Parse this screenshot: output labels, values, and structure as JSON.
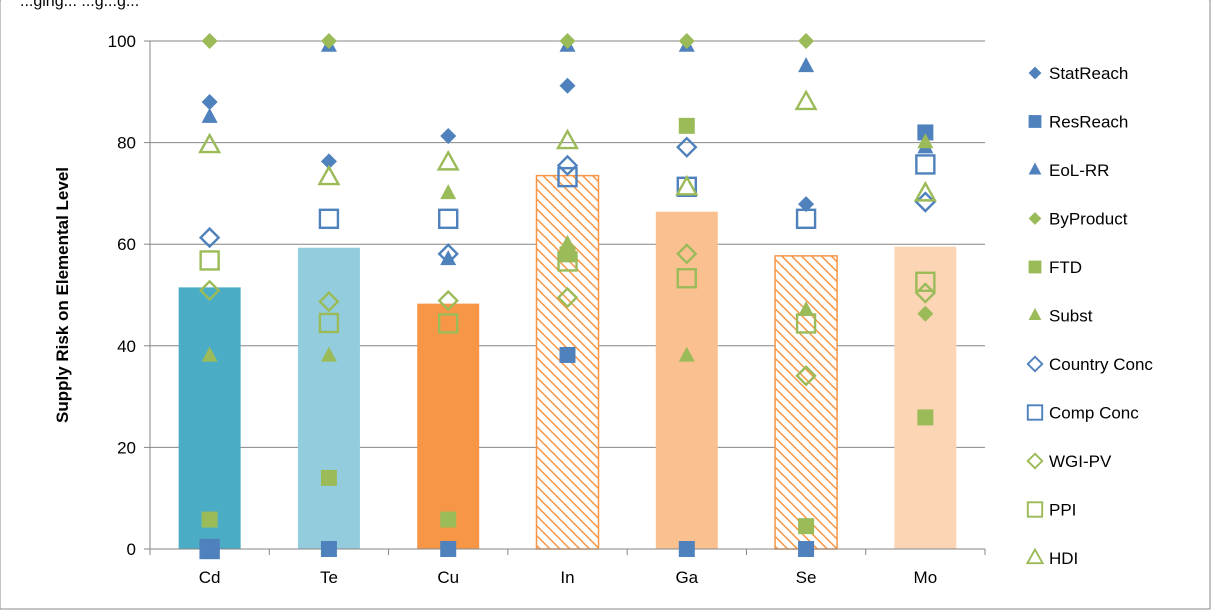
{
  "caption": "...ging... ...g...g...",
  "chart_data": {
    "type": "bar",
    "ylabel": "Supply Risk on Elemental Level",
    "xlabel": "",
    "ylim": [
      0,
      100
    ],
    "yticks": [
      0,
      20,
      40,
      60,
      80,
      100
    ],
    "grid": true,
    "legend_position": "right",
    "categories": [
      "Cd",
      "Te",
      "Cu",
      "In",
      "Ga",
      "Se",
      "Mo"
    ],
    "bars": {
      "values": [
        51.5,
        59.3,
        48.3,
        73.5,
        66.4,
        57.7,
        59.5
      ],
      "fills": [
        "#4bacc6",
        "#93cddd",
        "#f79646",
        "hatch",
        "#fac090",
        "hatch",
        "#fcd5b5"
      ]
    },
    "series": [
      {
        "name": "StatReach",
        "marker": "diamond",
        "filled": true,
        "color": "#4f81bd",
        "values": [
          88,
          76.3,
          81.3,
          91.2,
          null,
          67.9,
          null
        ]
      },
      {
        "name": "ResReach",
        "marker": "square",
        "filled": true,
        "color": "#4f81bd",
        "values": [
          0,
          0,
          0,
          38.2,
          0,
          0,
          82
        ]
      },
      {
        "name": "EoL-RR",
        "marker": "triangle",
        "filled": true,
        "color": "#4f81bd",
        "values": [
          85,
          99,
          57,
          99,
          99,
          95,
          79
        ]
      },
      {
        "name": "ByProduct",
        "marker": "diamond",
        "filled": true,
        "color": "#9bbb59",
        "values": [
          100,
          100,
          null,
          100,
          100,
          100,
          46.3
        ]
      },
      {
        "name": "FTD",
        "marker": "square",
        "filled": true,
        "color": "#9bbb59",
        "values": [
          5.8,
          14,
          5.8,
          58,
          83.3,
          4.5,
          25.9
        ]
      },
      {
        "name": "Subst",
        "marker": "triangle",
        "filled": true,
        "color": "#9bbb59",
        "values": [
          38,
          38,
          70,
          60,
          38,
          47,
          80
        ]
      },
      {
        "name": "Country Conc",
        "marker": "diamond",
        "filled": false,
        "color": "#4f81bd",
        "values": [
          61.3,
          null,
          58.1,
          75.5,
          79.1,
          null,
          68.3
        ]
      },
      {
        "name": "Comp Conc",
        "marker": "square",
        "filled": false,
        "color": "#4f81bd",
        "values": [
          0,
          65,
          65,
          73.2,
          71.3,
          65,
          75.7
        ]
      },
      {
        "name": "WGI-PV",
        "marker": "diamond",
        "filled": false,
        "color": "#9bbb59",
        "values": [
          50.9,
          48.7,
          48.9,
          49.5,
          58.1,
          34.1,
          50.4
        ]
      },
      {
        "name": "PPI",
        "marker": "square",
        "filled": false,
        "color": "#9bbb59",
        "values": [
          56.8,
          44.5,
          44.4,
          56.6,
          53.3,
          44.4,
          52.6
        ]
      },
      {
        "name": "HDI",
        "marker": "triangle",
        "filled": false,
        "color": "#9bbb59",
        "values": [
          79.4,
          73.1,
          76,
          80.2,
          71.1,
          87.9,
          69.9
        ]
      }
    ]
  }
}
